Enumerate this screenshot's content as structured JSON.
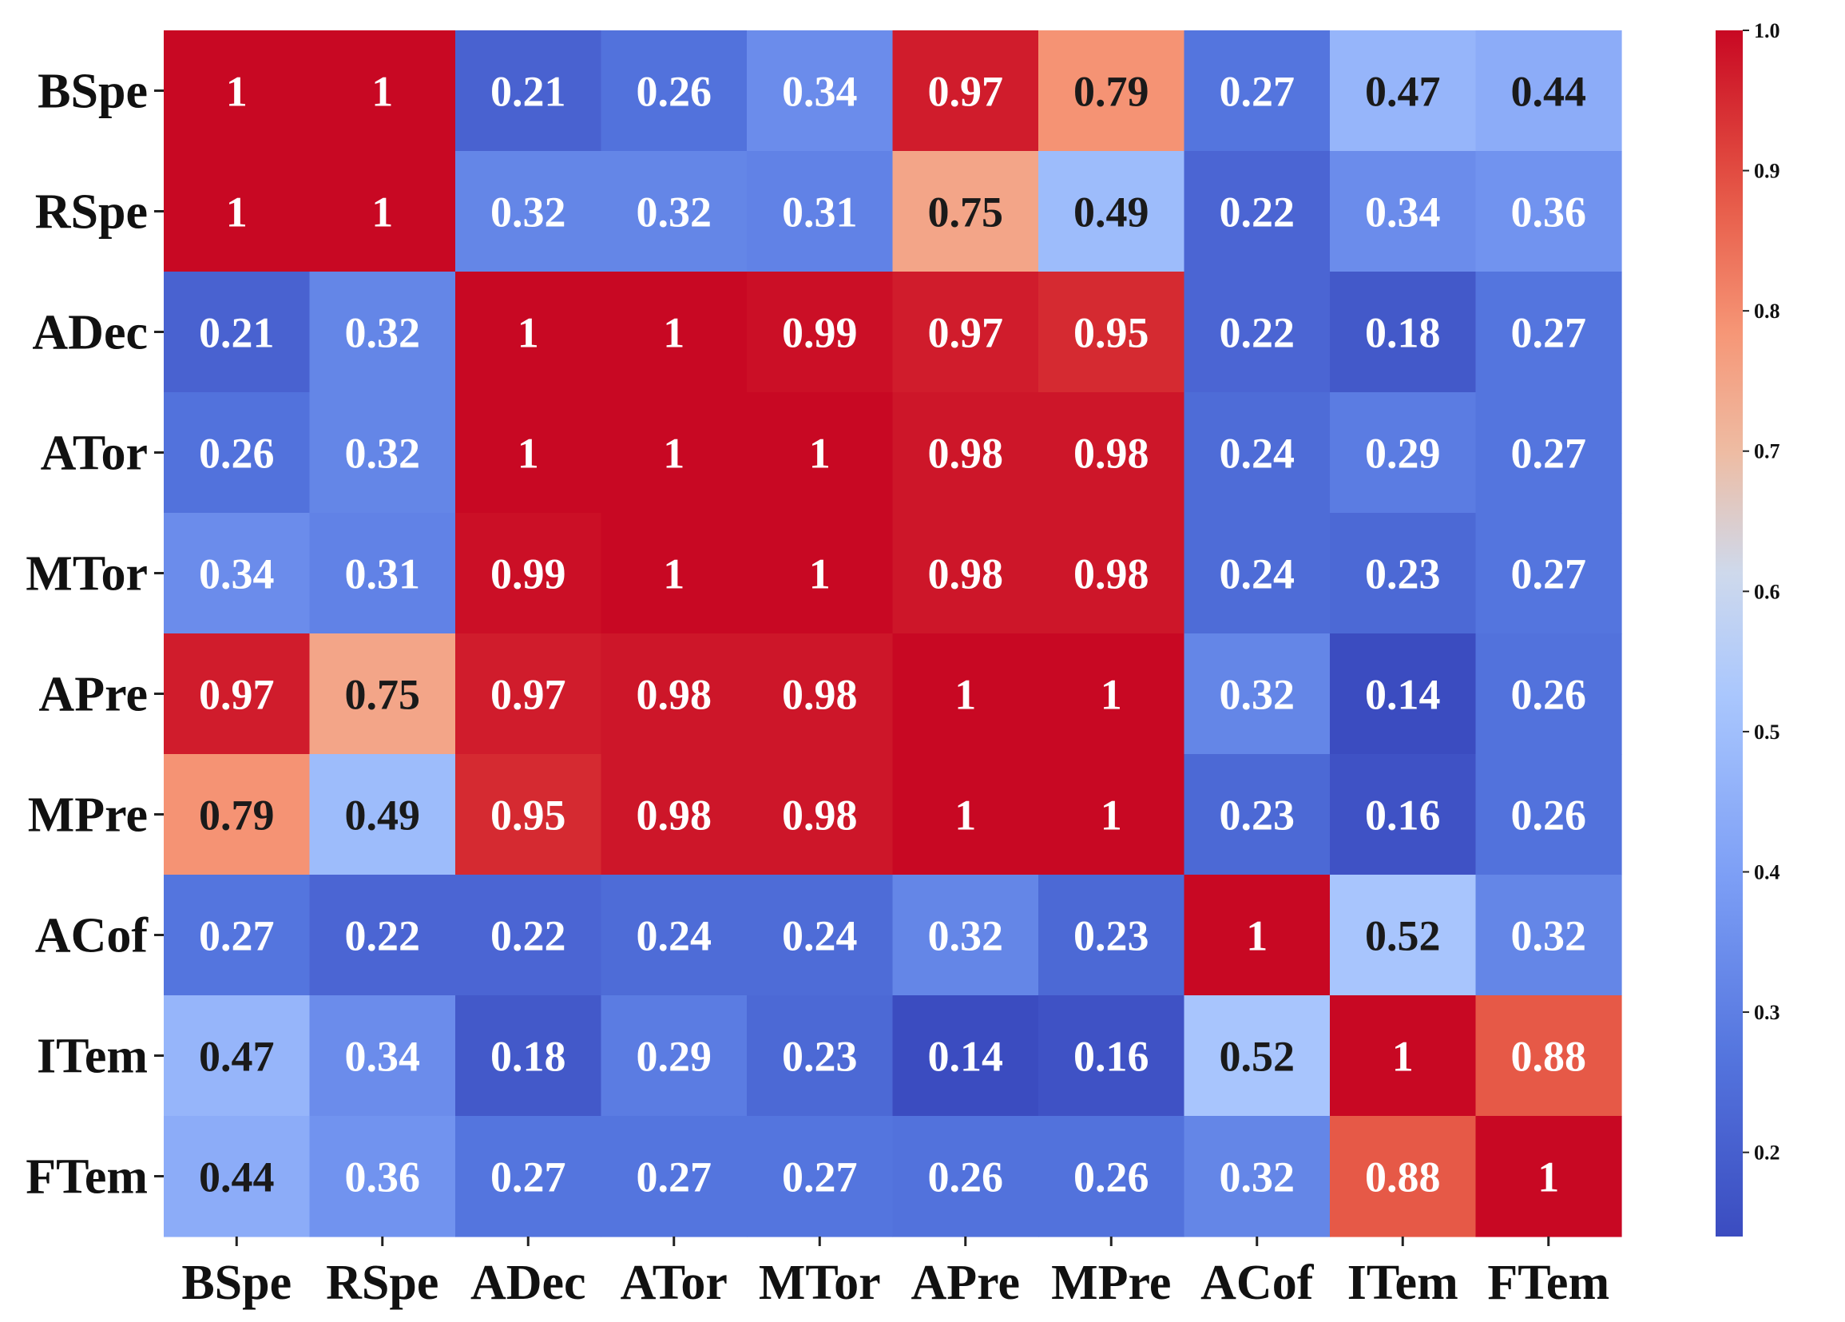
{
  "chart_data": {
    "type": "heatmap",
    "title": "",
    "xlabel": "",
    "ylabel": "",
    "x_labels": [
      "BSpe",
      "RSpe",
      "ADec",
      "ATor",
      "MTor",
      "APre",
      "MPre",
      "ACof",
      "ITem",
      "FTem"
    ],
    "y_labels": [
      "BSpe",
      "RSpe",
      "ADec",
      "ATor",
      "MTor",
      "APre",
      "MPre",
      "ACof",
      "ITem",
      "FTem"
    ],
    "values": [
      [
        1,
        1,
        0.21,
        0.26,
        0.34,
        0.97,
        0.79,
        0.27,
        0.47,
        0.44
      ],
      [
        1,
        1,
        0.32,
        0.32,
        0.31,
        0.75,
        0.49,
        0.22,
        0.34,
        0.36
      ],
      [
        0.21,
        0.32,
        1,
        1,
        0.99,
        0.97,
        0.95,
        0.22,
        0.18,
        0.27
      ],
      [
        0.26,
        0.32,
        1,
        1,
        1,
        0.98,
        0.98,
        0.24,
        0.29,
        0.27
      ],
      [
        0.34,
        0.31,
        0.99,
        1,
        1,
        0.98,
        0.98,
        0.24,
        0.23,
        0.27
      ],
      [
        0.97,
        0.75,
        0.97,
        0.98,
        0.98,
        1,
        1,
        0.32,
        0.14,
        0.26
      ],
      [
        0.79,
        0.49,
        0.95,
        0.98,
        0.98,
        1,
        1,
        0.23,
        0.16,
        0.26
      ],
      [
        0.27,
        0.22,
        0.22,
        0.24,
        0.24,
        0.32,
        0.23,
        1,
        0.52,
        0.32
      ],
      [
        0.47,
        0.34,
        0.18,
        0.29,
        0.23,
        0.14,
        0.16,
        0.52,
        1,
        0.88
      ],
      [
        0.44,
        0.36,
        0.27,
        0.27,
        0.27,
        0.26,
        0.26,
        0.32,
        0.88,
        1
      ]
    ],
    "colormap": "coolwarm",
    "vmin": 0.14,
    "vmax": 1.0,
    "colorbar": {
      "ticks": [
        0.2,
        0.3,
        0.4,
        0.5,
        0.6,
        0.7,
        0.8,
        0.9,
        1.0
      ],
      "tick_labels": [
        "0.2",
        "0.3",
        "0.4",
        "0.5",
        "0.6",
        "0.7",
        "0.8",
        "0.9",
        "1.0"
      ]
    },
    "annotations": true,
    "grid": false,
    "legend": "colorbar-right"
  }
}
